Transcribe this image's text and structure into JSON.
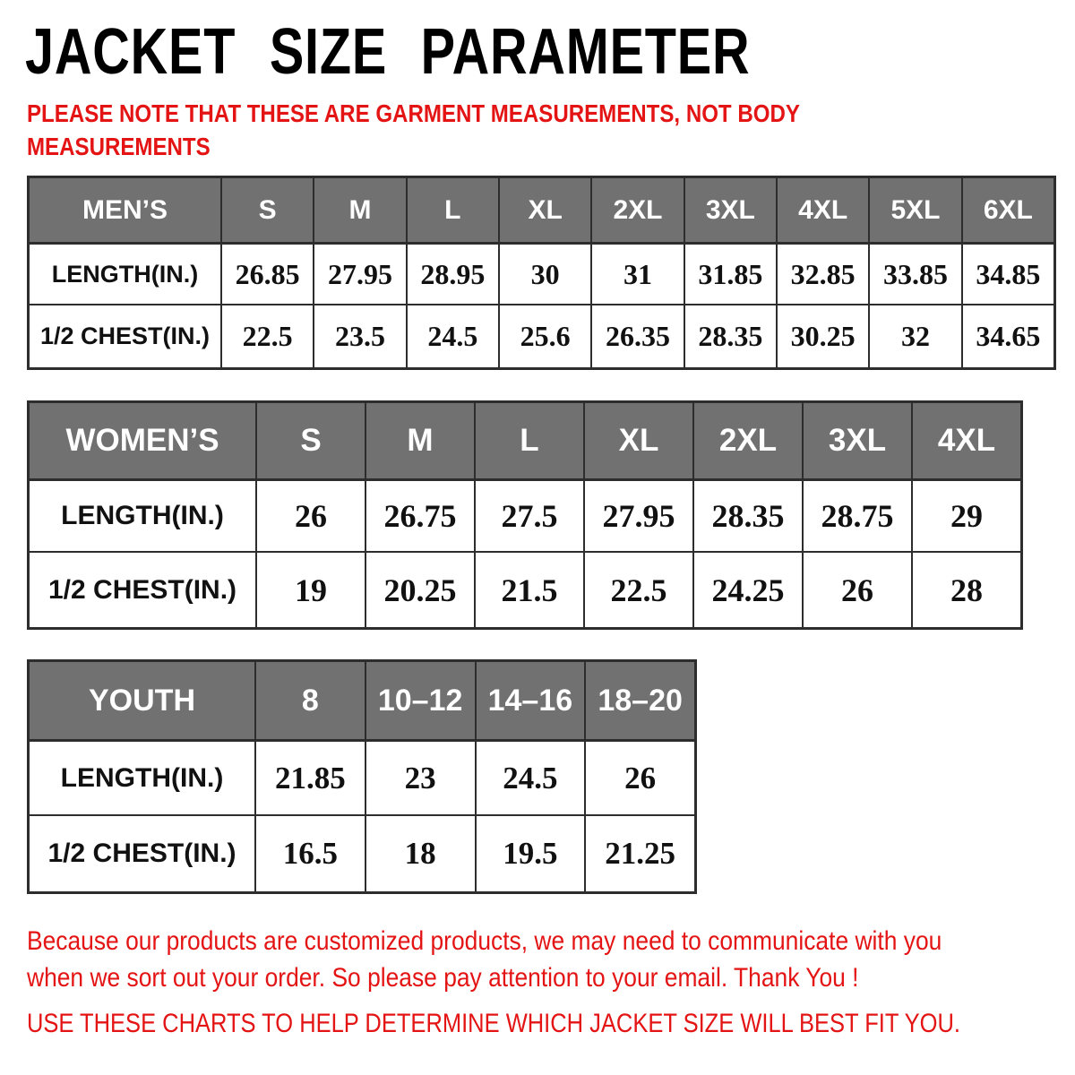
{
  "title": "JACKET SIZE PARAMETER",
  "note_lines": [
    "PLEASE NOTE THAT THESE ARE GARMENT MEASUREMENTS, NOT BODY",
    "MEASUREMENTS"
  ],
  "colors": {
    "header_bg": "#717171",
    "header_text": "#ffffff",
    "accent_red": "#e41414",
    "grid_border": "#2d2d2d",
    "page_bg": "#ffffff",
    "title_text": "#000000"
  },
  "tables": [
    {
      "name": "mens",
      "header": [
        "MEN’S",
        "S",
        "M",
        "L",
        "XL",
        "2XL",
        "3XL",
        "4XL",
        "5XL",
        "6XL"
      ],
      "rows": [
        {
          "label": "LENGTH(IN.)",
          "values": [
            "26.85",
            "27.95",
            "28.95",
            "30",
            "31",
            "31.85",
            "32.85",
            "33.85",
            "34.85"
          ]
        },
        {
          "label": "1/2 CHEST(IN.)",
          "values": [
            "22.5",
            "23.5",
            "24.5",
            "25.6",
            "26.35",
            "28.35",
            "30.25",
            "32",
            "34.65"
          ]
        }
      ]
    },
    {
      "name": "womens",
      "header": [
        "WOMEN’S",
        "S",
        "M",
        "L",
        "XL",
        "2XL",
        "3XL",
        "4XL"
      ],
      "rows": [
        {
          "label": "LENGTH(IN.)",
          "values": [
            "26",
            "26.75",
            "27.5",
            "27.95",
            "28.35",
            "28.75",
            "29"
          ]
        },
        {
          "label": "1/2 CHEST(IN.)",
          "values": [
            "19",
            "20.25",
            "21.5",
            "22.5",
            "24.25",
            "26",
            "28"
          ]
        }
      ]
    },
    {
      "name": "youth",
      "header": [
        "YOUTH",
        "8",
        "10–12",
        "14–16",
        "18–20"
      ],
      "rows": [
        {
          "label": "LENGTH(IN.)",
          "values": [
            "21.85",
            "23",
            "24.5",
            "26"
          ]
        },
        {
          "label": "1/2 CHEST(IN.)",
          "values": [
            "16.5",
            "18",
            "19.5",
            "21.25"
          ]
        }
      ]
    }
  ],
  "footer": {
    "lines": [
      "Because our products are customized products, we may need to communicate with you",
      "when we sort out your order. So please pay attention to your email. Thank You !"
    ],
    "cta": "USE THESE CHARTS TO HELP DETERMINE WHICH JACKET SIZE WILL BEST FIT YOU."
  }
}
